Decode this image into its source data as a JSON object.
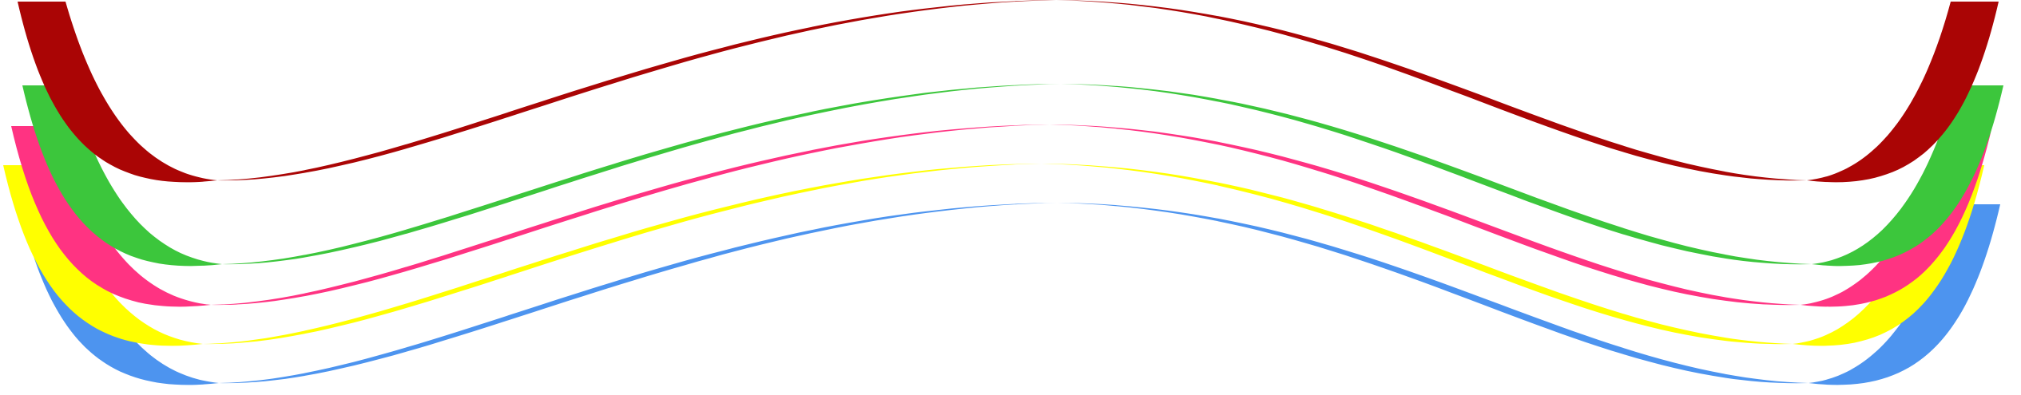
{
  "ribbons": [
    {
      "name": "blue-ribbon",
      "color": "#4d94ef"
    },
    {
      "name": "yellow-ribbon",
      "color": "#ffff00"
    },
    {
      "name": "pink-ribbon",
      "color": "#ff3382"
    },
    {
      "name": "green-ribbon",
      "color": "#3cc63c"
    },
    {
      "name": "dark-red-ribbon",
      "color": "#aa0505"
    }
  ]
}
